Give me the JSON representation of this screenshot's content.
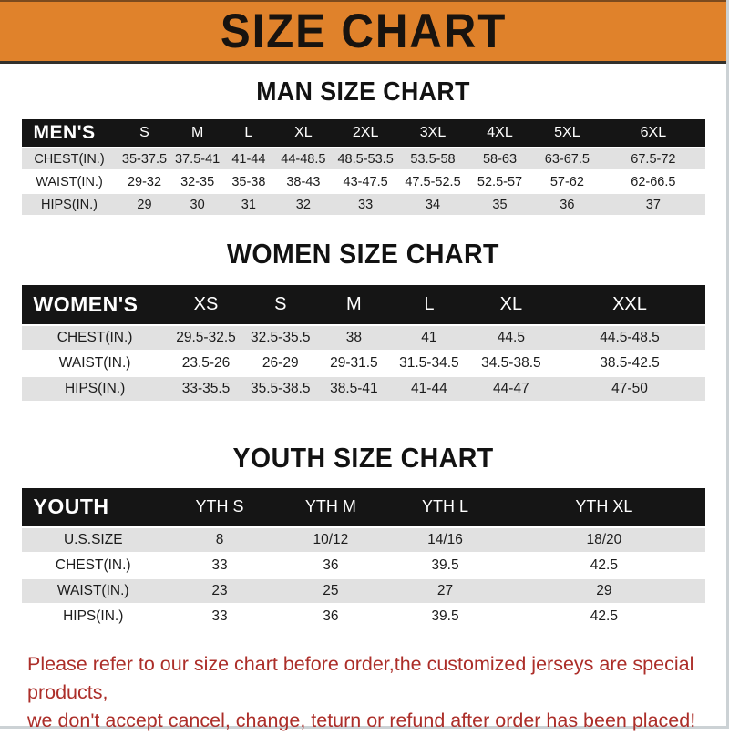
{
  "banner": {
    "title": "SIZE CHART"
  },
  "colors": {
    "banner_bg": "#e0822b",
    "header_bar_bg": "#151515",
    "row_alt_bg": "#e1e1e1",
    "footer_text": "#ac2e29"
  },
  "sections": [
    {
      "title": "MAN SIZE CHART",
      "group_label": "MEN'S",
      "columns": [
        "S",
        "M",
        "L",
        "XL",
        "2XL",
        "3XL",
        "4XL",
        "5XL",
        "6XL"
      ],
      "rows": [
        {
          "label": "CHEST(IN.)",
          "values": [
            "35-37.5",
            "37.5-41",
            "41-44",
            "44-48.5",
            "48.5-53.5",
            "53.5-58",
            "58-63",
            "63-67.5",
            "67.5-72"
          ]
        },
        {
          "label": "WAIST(IN.)",
          "values": [
            "29-32",
            "32-35",
            "35-38",
            "38-43",
            "43-47.5",
            "47.5-52.5",
            "52.5-57",
            "57-62",
            "62-66.5"
          ]
        },
        {
          "label": "HIPS(IN.)",
          "values": [
            "29",
            "30",
            "31",
            "32",
            "33",
            "34",
            "35",
            "36",
            "37"
          ]
        }
      ]
    },
    {
      "title": "WOMEN SIZE CHART",
      "group_label": "WOMEN'S",
      "columns": [
        "XS",
        "S",
        "M",
        "L",
        "XL",
        "XXL"
      ],
      "rows": [
        {
          "label": "CHEST(IN.)",
          "values": [
            "29.5-32.5",
            "32.5-35.5",
            "38",
            "41",
            "44.5",
            "44.5-48.5"
          ]
        },
        {
          "label": "WAIST(IN.)",
          "values": [
            "23.5-26",
            "26-29",
            "29-31.5",
            "31.5-34.5",
            "34.5-38.5",
            "38.5-42.5"
          ]
        },
        {
          "label": "HIPS(IN.)",
          "values": [
            "33-35.5",
            "35.5-38.5",
            "38.5-41",
            "41-44",
            "44-47",
            "47-50"
          ]
        }
      ]
    },
    {
      "title": "YOUTH SIZE CHART",
      "group_label": "YOUTH",
      "columns": [
        "YTH S",
        "YTH M",
        "YTH L",
        "YTH XL"
      ],
      "rows": [
        {
          "label": "U.S.SIZE",
          "values": [
            "8",
            "10/12",
            "14/16",
            "18/20"
          ]
        },
        {
          "label": "CHEST(IN.)",
          "values": [
            "33",
            "36",
            "39.5",
            "42.5"
          ]
        },
        {
          "label": "WAIST(IN.)",
          "values": [
            "23",
            "25",
            "27",
            "29"
          ]
        },
        {
          "label": "HIPS(IN.)",
          "values": [
            "33",
            "36",
            "39.5",
            "42.5"
          ]
        }
      ]
    }
  ],
  "footer": {
    "line1": "Please refer to our size chart before order,the customized jerseys are special products,",
    "line2": "we don't accept cancel, change, teturn or refund after order has been placed!"
  }
}
